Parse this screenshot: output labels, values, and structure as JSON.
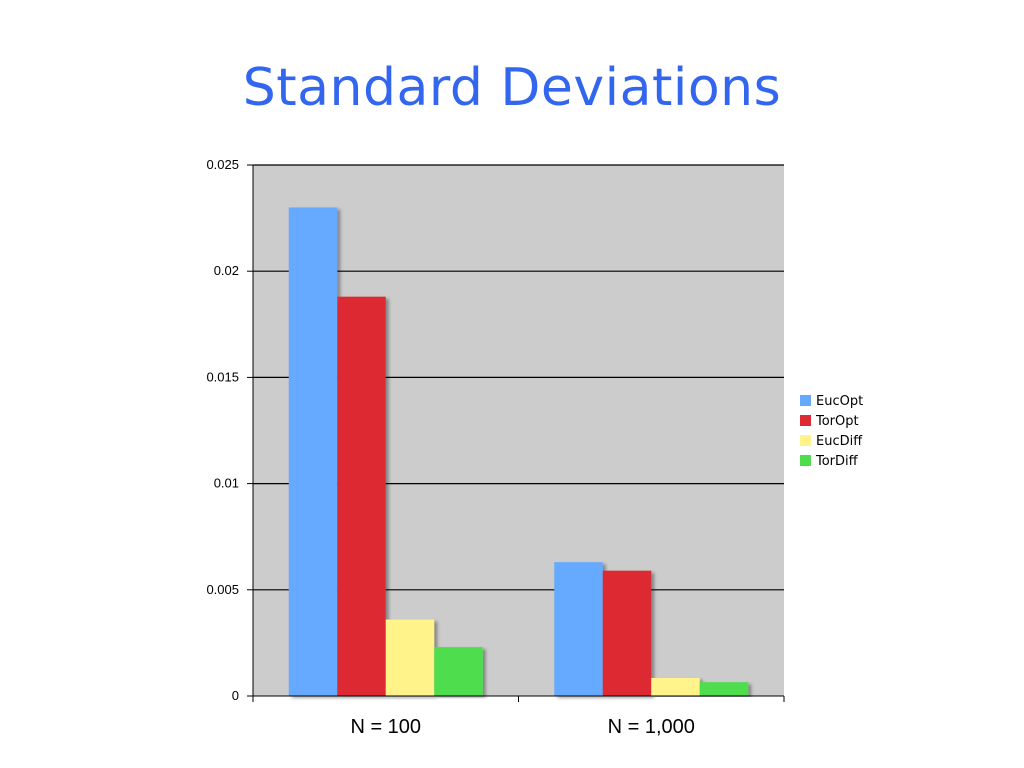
{
  "slide": {
    "title": "Standard Deviations"
  },
  "chart_data": {
    "type": "bar",
    "categories": [
      "N = 100",
      "N = 1,000"
    ],
    "series": [
      {
        "name": "EucOpt",
        "color": "#66aaff",
        "values": [
          0.023,
          0.0063
        ]
      },
      {
        "name": "TorOpt",
        "color": "#dd2b33",
        "values": [
          0.0188,
          0.0059
        ]
      },
      {
        "name": "EucDiff",
        "color": "#fff38a",
        "values": [
          0.0036,
          0.00085
        ]
      },
      {
        "name": "TorDiff",
        "color": "#4ddd4d",
        "values": [
          0.0023,
          0.00065
        ]
      }
    ],
    "ylim": [
      0,
      0.025
    ],
    "yticks": [
      "0",
      "0.005",
      "0.01",
      "0.015",
      "0.02",
      "0.025"
    ],
    "ytick_values": [
      0,
      0.005,
      0.01,
      0.015,
      0.02,
      0.025
    ],
    "grid": true,
    "plot_background": "#cccccc",
    "legend_position": "right"
  }
}
